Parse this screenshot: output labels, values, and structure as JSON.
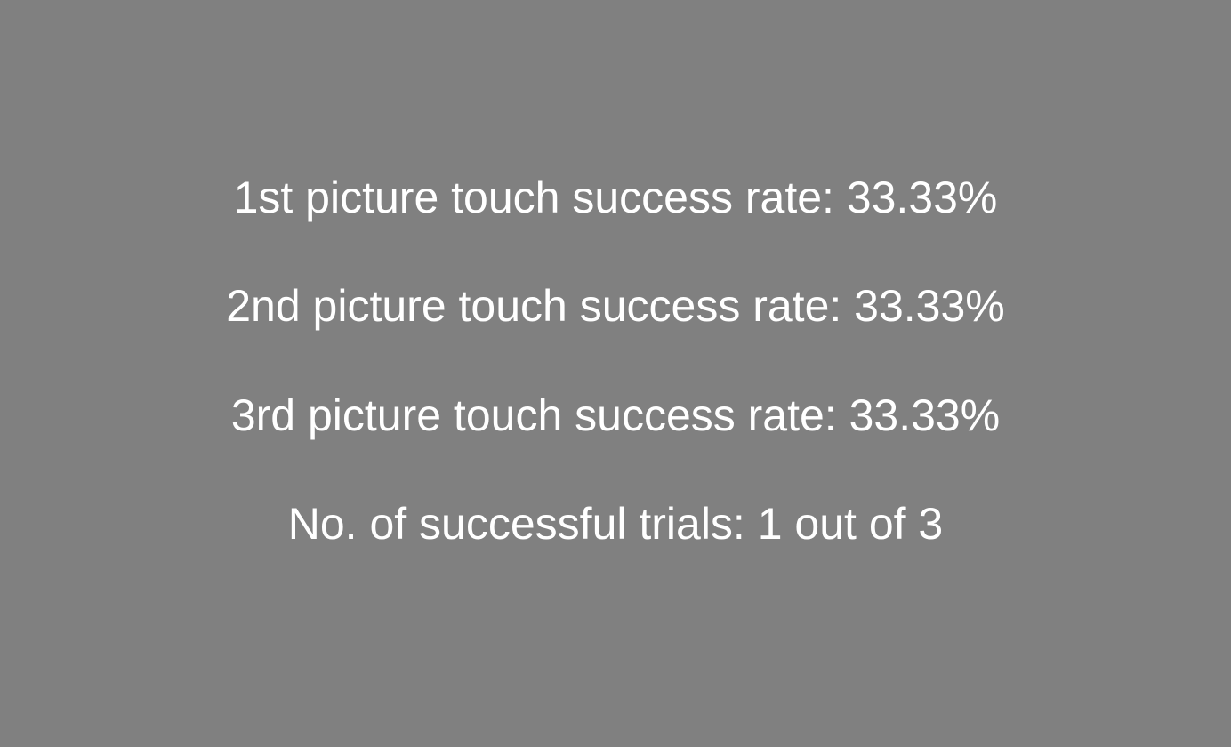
{
  "background_color": "#808080",
  "text_color": "#ffffff",
  "results": {
    "first_picture": "1st picture touch success rate: 33.33%",
    "second_picture": "2nd picture touch success rate: 33.33%",
    "third_picture": "3rd picture touch success rate: 33.33%",
    "successful_trials": "No. of successful trials: 1 out of 3"
  }
}
